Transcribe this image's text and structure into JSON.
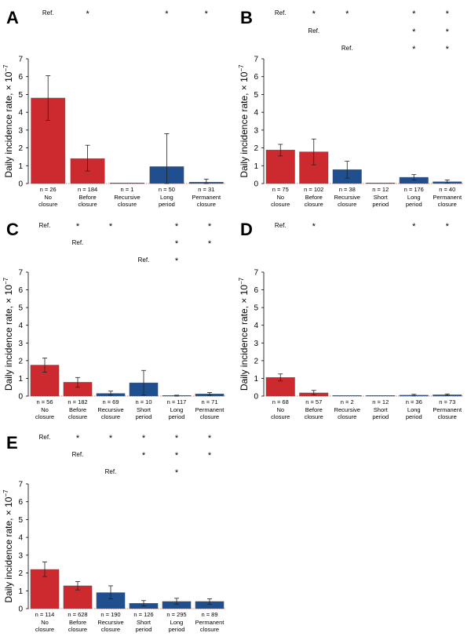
{
  "colors": {
    "red": "#cc2a2e",
    "blue": "#1f4f8f",
    "zero_line": "#e05050"
  },
  "chart_data": [
    {
      "panel": "A",
      "type": "bar",
      "ylabel": "Daily incidence rate, × 10",
      "yexp": "−7",
      "ylim": [
        0,
        7
      ],
      "yticks": [
        "0",
        "1",
        "2",
        "3",
        "4",
        "5",
        "6",
        "7"
      ],
      "bars": [
        {
          "label1": "No",
          "label2": "closure",
          "n": "n = 26",
          "value": 4.8,
          "err_low": 3.55,
          "err_high": 6.05,
          "color": "red"
        },
        {
          "label1": "Before",
          "label2": "closure",
          "n": "n = 184",
          "value": 1.4,
          "err_low": 0.7,
          "err_high": 2.15,
          "color": "red"
        },
        {
          "label1": "Recursive",
          "label2": "closure",
          "n": "n = 1",
          "value": 0.0,
          "err_low": 0,
          "err_high": 0,
          "color": "blue"
        },
        {
          "label1": "Long",
          "label2": "period",
          "n": "n = 50",
          "value": 0.95,
          "err_low": 0,
          "err_high": 2.8,
          "color": "blue"
        },
        {
          "label1": "Permanent",
          "label2": "closure",
          "n": "n = 31",
          "value": 0.08,
          "err_low": 0,
          "err_high": 0.25,
          "color": "blue"
        }
      ],
      "sig_rows": [
        {
          "ref_at": 0,
          "ref": "Ref.",
          "stars": [
            1,
            3,
            4
          ],
          "star": "*"
        }
      ]
    },
    {
      "panel": "B",
      "type": "bar",
      "ylabel": "Daily incidence rate, × 10",
      "yexp": "−7",
      "ylim": [
        0,
        7
      ],
      "yticks": [
        "0",
        "1",
        "2",
        "3",
        "4",
        "5",
        "6",
        "7"
      ],
      "bars": [
        {
          "label1": "No",
          "label2": "closure",
          "n": "n = 75",
          "value": 1.88,
          "err_low": 1.55,
          "err_high": 2.2,
          "color": "red"
        },
        {
          "label1": "Before",
          "label2": "closure",
          "n": "n = 102",
          "value": 1.78,
          "err_low": 1.05,
          "err_high": 2.5,
          "color": "red"
        },
        {
          "label1": "Recursive",
          "label2": "closure",
          "n": "n = 38",
          "value": 0.78,
          "err_low": 0.3,
          "err_high": 1.25,
          "color": "blue"
        },
        {
          "label1": "Short",
          "label2": "period",
          "n": "n = 12",
          "value": 0.0,
          "err_low": 0,
          "err_high": 0,
          "color": "blue"
        },
        {
          "label1": "Long",
          "label2": "period",
          "n": "n = 176",
          "value": 0.35,
          "err_low": 0.2,
          "err_high": 0.5,
          "color": "blue"
        },
        {
          "label1": "Permanent",
          "label2": "closure",
          "n": "n = 40",
          "value": 0.1,
          "err_low": 0.02,
          "err_high": 0.2,
          "color": "blue"
        }
      ],
      "sig_rows": [
        {
          "ref_at": 0,
          "ref": "Ref.",
          "stars": [
            1,
            2,
            4,
            5
          ],
          "star": "*"
        },
        {
          "ref_at": 1,
          "ref": "Ref.",
          "stars": [
            4,
            5
          ],
          "star": "*"
        },
        {
          "ref_at": 2,
          "ref": "Ref.",
          "stars": [
            4,
            5
          ],
          "star": "*"
        }
      ]
    },
    {
      "panel": "C",
      "type": "bar",
      "ylabel": "Daily incidence rate, × 10",
      "yexp": "−7",
      "ylim": [
        0,
        7
      ],
      "yticks": [
        "0",
        "1",
        "2",
        "3",
        "4",
        "5",
        "6",
        "7"
      ],
      "bars": [
        {
          "label1": "No",
          "label2": "closure",
          "n": "n = 56",
          "value": 1.75,
          "err_low": 1.35,
          "err_high": 2.15,
          "color": "red"
        },
        {
          "label1": "Before",
          "label2": "closure",
          "n": "n = 182",
          "value": 0.78,
          "err_low": 0.5,
          "err_high": 1.05,
          "color": "red"
        },
        {
          "label1": "Recursive",
          "label2": "closure",
          "n": "n = 69",
          "value": 0.15,
          "err_low": 0.05,
          "err_high": 0.28,
          "color": "blue"
        },
        {
          "label1": "Short",
          "label2": "period",
          "n": "n = 10",
          "value": 0.75,
          "err_low": 0.05,
          "err_high": 1.45,
          "color": "blue"
        },
        {
          "label1": "Long",
          "label2": "period",
          "n": "n = 117",
          "value": 0.02,
          "err_low": 0,
          "err_high": 0.05,
          "color": "blue"
        },
        {
          "label1": "Permanent",
          "label2": "closure",
          "n": "n = 71",
          "value": 0.12,
          "err_low": 0.04,
          "err_high": 0.2,
          "color": "blue"
        }
      ],
      "sig_rows": [
        {
          "ref_at": 0,
          "ref": "Ref.",
          "stars": [
            1,
            2,
            4,
            5
          ],
          "star": "*"
        },
        {
          "ref_at": 1,
          "ref": "Ref.",
          "stars": [
            4,
            5
          ],
          "star": "*"
        },
        {
          "ref_at": 3,
          "ref": "Ref.",
          "stars": [
            4
          ],
          "star": "*"
        }
      ]
    },
    {
      "panel": "D",
      "type": "bar",
      "ylabel": "Daily incidence rate, × 10",
      "yexp": "−7",
      "ylim": [
        0,
        7
      ],
      "yticks": [
        "0",
        "1",
        "2",
        "3",
        "4",
        "5",
        "6",
        "7"
      ],
      "bars": [
        {
          "label1": "No",
          "label2": "closure",
          "n": "n = 68",
          "value": 1.05,
          "err_low": 0.85,
          "err_high": 1.25,
          "color": "red"
        },
        {
          "label1": "Before",
          "label2": "closure",
          "n": "n = 57",
          "value": 0.18,
          "err_low": 0.08,
          "err_high": 0.32,
          "color": "red"
        },
        {
          "label1": "Recursive",
          "label2": "closure",
          "n": "n = 2",
          "value": 0.0,
          "err_low": 0,
          "err_high": 0,
          "color": "blue"
        },
        {
          "label1": "Short",
          "label2": "period",
          "n": "n = 12",
          "value": 0.0,
          "err_low": 0,
          "err_high": 0,
          "color": "blue"
        },
        {
          "label1": "Long",
          "label2": "period",
          "n": "n = 36",
          "value": 0.05,
          "err_low": 0.01,
          "err_high": 0.1,
          "color": "blue"
        },
        {
          "label1": "Permanent",
          "label2": "closure",
          "n": "n = 73",
          "value": 0.07,
          "err_low": 0.02,
          "err_high": 0.12,
          "color": "blue"
        }
      ],
      "sig_rows": [
        {
          "ref_at": 0,
          "ref": "Ref.",
          "stars": [
            1,
            4,
            5
          ],
          "star": "*"
        }
      ]
    },
    {
      "panel": "E",
      "type": "bar",
      "ylabel": "Daily incidence rate, × 10",
      "yexp": "−7",
      "ylim": [
        0,
        7
      ],
      "yticks": [
        "0",
        "1",
        "2",
        "3",
        "4",
        "5",
        "6",
        "7"
      ],
      "bars": [
        {
          "label1": "No",
          "label2": "closure",
          "n": "n = 114",
          "value": 2.2,
          "err_low": 1.8,
          "err_high": 2.62,
          "color": "red"
        },
        {
          "label1": "Before",
          "label2": "closure",
          "n": "n = 628",
          "value": 1.28,
          "err_low": 1.05,
          "err_high": 1.52,
          "color": "red"
        },
        {
          "label1": "Recursive",
          "label2": "closure",
          "n": "n = 190",
          "value": 0.9,
          "err_low": 0.55,
          "err_high": 1.28,
          "color": "blue"
        },
        {
          "label1": "Short",
          "label2": "period",
          "n": "n = 126",
          "value": 0.3,
          "err_low": 0.15,
          "err_high": 0.45,
          "color": "blue"
        },
        {
          "label1": "Long",
          "label2": "period",
          "n": "n = 295",
          "value": 0.4,
          "err_low": 0.25,
          "err_high": 0.58,
          "color": "blue"
        },
        {
          "label1": "Permanent",
          "label2": "closure",
          "n": "n = 89",
          "value": 0.4,
          "err_low": 0.25,
          "err_high": 0.55,
          "color": "blue"
        }
      ],
      "sig_rows": [
        {
          "ref_at": 0,
          "ref": "Ref.",
          "stars": [
            1,
            2,
            3,
            4,
            5
          ],
          "star": "*"
        },
        {
          "ref_at": 1,
          "ref": "Ref.",
          "stars": [
            3,
            4,
            5
          ],
          "star": "*"
        },
        {
          "ref_at": 2,
          "ref": "Ref.",
          "stars": [
            4
          ],
          "star": "*"
        }
      ]
    }
  ]
}
